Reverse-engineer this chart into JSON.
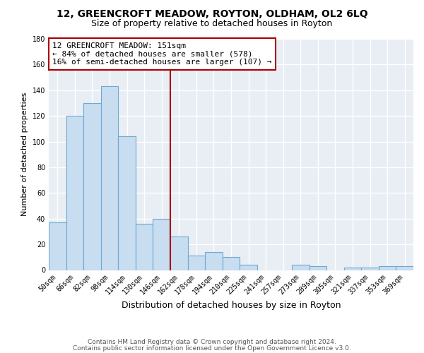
{
  "title": "12, GREENCROFT MEADOW, ROYTON, OLDHAM, OL2 6LQ",
  "subtitle": "Size of property relative to detached houses in Royton",
  "xlabel": "Distribution of detached houses by size in Royton",
  "ylabel": "Number of detached properties",
  "bar_labels": [
    "50sqm",
    "66sqm",
    "82sqm",
    "98sqm",
    "114sqm",
    "130sqm",
    "146sqm",
    "162sqm",
    "178sqm",
    "194sqm",
    "210sqm",
    "225sqm",
    "241sqm",
    "257sqm",
    "273sqm",
    "289sqm",
    "305sqm",
    "321sqm",
    "337sqm",
    "353sqm",
    "369sqm"
  ],
  "bar_values": [
    37,
    120,
    130,
    143,
    104,
    36,
    40,
    26,
    11,
    14,
    10,
    4,
    0,
    0,
    4,
    3,
    0,
    2,
    2,
    3,
    3
  ],
  "bar_color": "#c8ddef",
  "bar_edge_color": "#6aaad4",
  "vline_color": "#aa0000",
  "vline_pos": 6.5,
  "ylim": [
    0,
    180
  ],
  "yticks": [
    0,
    20,
    40,
    60,
    80,
    100,
    120,
    140,
    160,
    180
  ],
  "annotation_title": "12 GREENCROFT MEADOW: 151sqm",
  "annotation_line1": "← 84% of detached houses are smaller (578)",
  "annotation_line2": "16% of semi-detached houses are larger (107) →",
  "annotation_box_facecolor": "#ffffff",
  "annotation_box_edgecolor": "#aa0000",
  "footer1": "Contains HM Land Registry data © Crown copyright and database right 2024.",
  "footer2": "Contains public sector information licensed under the Open Government Licence v3.0.",
  "fig_bg_color": "#ffffff",
  "plot_bg_color": "#e8eef4",
  "grid_color": "#ffffff",
  "title_fontsize": 10,
  "subtitle_fontsize": 9,
  "xlabel_fontsize": 9,
  "ylabel_fontsize": 8,
  "tick_fontsize": 7,
  "annotation_fontsize": 8,
  "footer_fontsize": 6.5
}
